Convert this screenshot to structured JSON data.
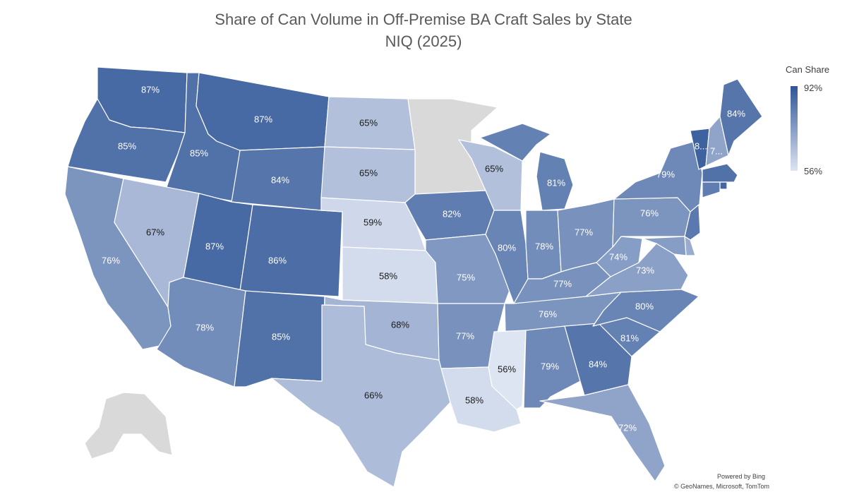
{
  "title": {
    "line1": "Share of Can Volume in Off-Premise BA Craft Sales by State",
    "line2": "NIQ (2025)"
  },
  "legend": {
    "title": "Can Share",
    "max_label": "92%",
    "min_label": "56%",
    "color_max": "#2f5597",
    "color_min": "#dde4f2",
    "min": 56,
    "max": 92
  },
  "credits": {
    "powered_by": "Powered by Bing",
    "sources": "© GeoNames, Microsoft, TomTom"
  },
  "no_data_color": "#d9d9d9",
  "chart_data": {
    "type": "choropleth",
    "value_unit": "%",
    "states": [
      {
        "state": "Washington",
        "value": 87,
        "label": "87%"
      },
      {
        "state": "Oregon",
        "value": 85,
        "label": "85%"
      },
      {
        "state": "California",
        "value": 76,
        "label": "76%"
      },
      {
        "state": "Idaho",
        "value": 85,
        "label": "85%"
      },
      {
        "state": "Nevada",
        "value": 67,
        "label": "67%"
      },
      {
        "state": "Montana",
        "value": 87,
        "label": "87%"
      },
      {
        "state": "Wyoming",
        "value": 84,
        "label": "84%"
      },
      {
        "state": "Utah",
        "value": 87,
        "label": "87%"
      },
      {
        "state": "Colorado",
        "value": 86,
        "label": "86%"
      },
      {
        "state": "Arizona",
        "value": 78,
        "label": "78%"
      },
      {
        "state": "New Mexico",
        "value": 85,
        "label": "85%"
      },
      {
        "state": "North Dakota",
        "value": 65,
        "label": "65%"
      },
      {
        "state": "South Dakota",
        "value": 65,
        "label": "65%"
      },
      {
        "state": "Nebraska",
        "value": 59,
        "label": "59%"
      },
      {
        "state": "Kansas",
        "value": 58,
        "label": "58%"
      },
      {
        "state": "Oklahoma",
        "value": 68,
        "label": "68%"
      },
      {
        "state": "Texas",
        "value": 66,
        "label": "66%"
      },
      {
        "state": "Minnesota",
        "value": null,
        "label": ""
      },
      {
        "state": "Iowa",
        "value": 82,
        "label": "82%"
      },
      {
        "state": "Missouri",
        "value": 75,
        "label": "75%"
      },
      {
        "state": "Arkansas",
        "value": 77,
        "label": "77%"
      },
      {
        "state": "Louisiana",
        "value": 58,
        "label": "58%"
      },
      {
        "state": "Wisconsin",
        "value": 65,
        "label": "65%"
      },
      {
        "state": "Illinois",
        "value": 80,
        "label": "80%"
      },
      {
        "state": "Michigan",
        "value": 81,
        "label": "81%"
      },
      {
        "state": "Indiana",
        "value": 78,
        "label": "78%"
      },
      {
        "state": "Ohio",
        "value": 77,
        "label": "77%"
      },
      {
        "state": "Kentucky",
        "value": 77,
        "label": "77%"
      },
      {
        "state": "Tennessee",
        "value": 76,
        "label": "76%"
      },
      {
        "state": "Mississippi",
        "value": 56,
        "label": "56%"
      },
      {
        "state": "Alabama",
        "value": 79,
        "label": "79%"
      },
      {
        "state": "Georgia",
        "value": 84,
        "label": "84%"
      },
      {
        "state": "Florida",
        "value": 72,
        "label": "72%"
      },
      {
        "state": "South Carolina",
        "value": 81,
        "label": "81%"
      },
      {
        "state": "North Carolina",
        "value": 80,
        "label": "80%"
      },
      {
        "state": "Virginia",
        "value": 73,
        "label": "73%"
      },
      {
        "state": "West Virginia",
        "value": 74,
        "label": "74%"
      },
      {
        "state": "Pennsylvania",
        "value": 76,
        "label": "76%"
      },
      {
        "state": "New York",
        "value": 79,
        "label": "79%"
      },
      {
        "state": "Vermont",
        "value": 89,
        "label": "8..."
      },
      {
        "state": "New Hampshire",
        "value": 72,
        "label": "7..."
      },
      {
        "state": "Maine",
        "value": 84,
        "label": "84%"
      },
      {
        "state": "Massachusetts",
        "value": 85,
        "label": ""
      },
      {
        "state": "Rhode Island",
        "value": 88,
        "label": ""
      },
      {
        "state": "Connecticut",
        "value": 82,
        "label": ""
      },
      {
        "state": "New Jersey",
        "value": 83,
        "label": ""
      },
      {
        "state": "Delaware",
        "value": 70,
        "label": ""
      },
      {
        "state": "Maryland",
        "value": 74,
        "label": ""
      },
      {
        "state": "Alaska",
        "value": null,
        "label": ""
      }
    ]
  }
}
